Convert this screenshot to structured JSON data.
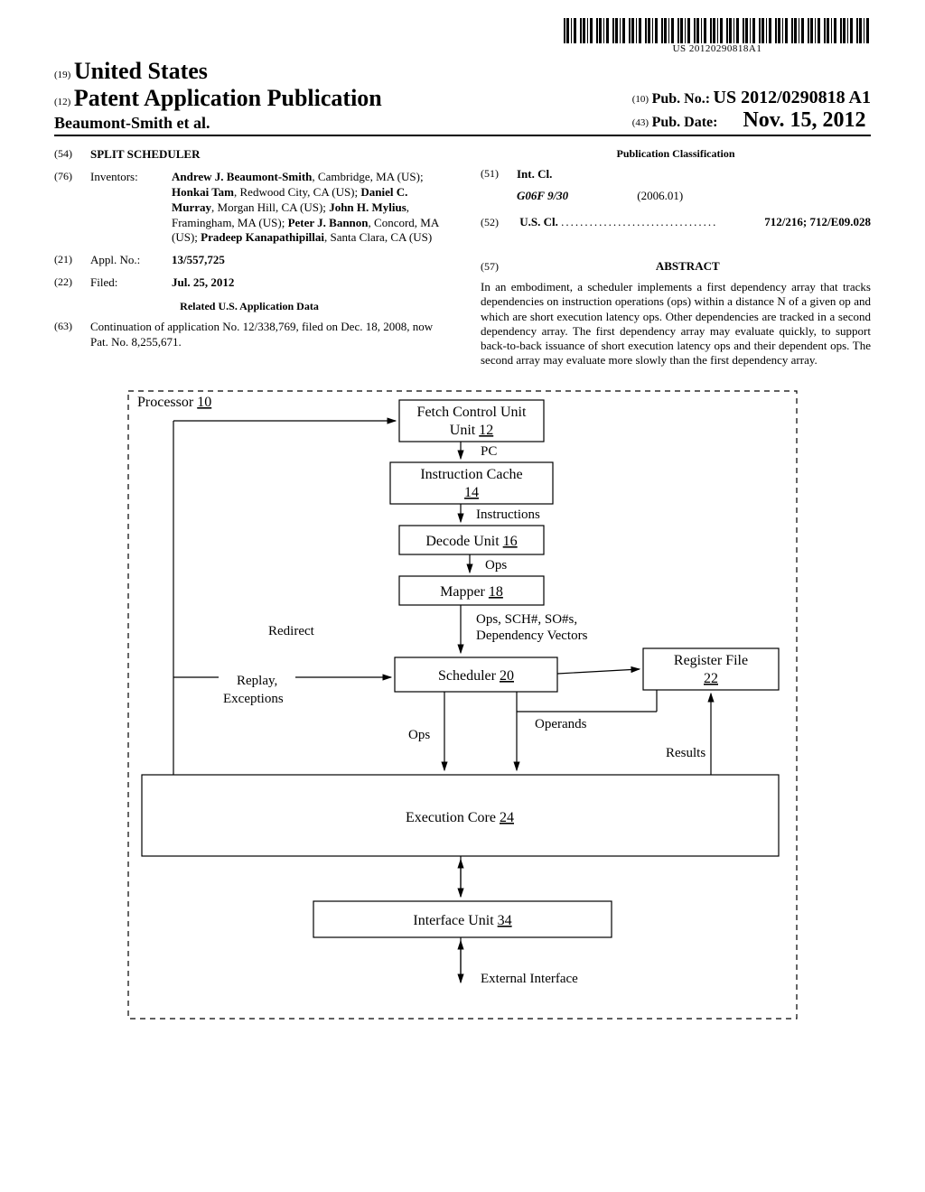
{
  "barcode_text": "US 20120290818A1",
  "country_prefix": "(19)",
  "country_name": "United States",
  "pub_prefix": "(12)",
  "pub_title": "Patent Application Publication",
  "authors_line": "Beaumont-Smith et al.",
  "pubno_prefix": "(10)",
  "pubno_label": "Pub. No.:",
  "pubno_value": "US 2012/0290818 A1",
  "pubdate_prefix": "(43)",
  "pubdate_label": "Pub. Date:",
  "pubdate_value": "Nov. 15, 2012",
  "bib": {
    "title_code": "(54)",
    "title_value": "SPLIT SCHEDULER",
    "inventors_code": "(76)",
    "inventors_label": "Inventors:",
    "inventors_html": "<b>Andrew J. Beaumont-Smith</b>, Cambridge, MA (US); <b>Honkai Tam</b>, Redwood City, CA (US); <b>Daniel C. Murray</b>, Morgan Hill, CA (US); <b>John H. Mylius</b>, Framingham, MA (US); <b>Peter J. Bannon</b>, Concord, MA (US); <b>Pradeep Kanapathipillai</b>, Santa Clara, CA (US)",
    "applno_code": "(21)",
    "applno_label": "Appl. No.:",
    "applno_value": "13/557,725",
    "filed_code": "(22)",
    "filed_label": "Filed:",
    "filed_value": "Jul. 25, 2012",
    "related_heading": "Related U.S. Application Data",
    "continuation_code": "(63)",
    "continuation_text": "Continuation of application No. 12/338,769, filed on Dec. 18, 2008, now Pat. No. 8,255,671."
  },
  "classification": {
    "heading": "Publication Classification",
    "intcl_code": "(51)",
    "intcl_label": "Int. Cl.",
    "intcl_class": "G06F 9/30",
    "intcl_date": "(2006.01)",
    "uscl_code": "(52)",
    "uscl_label": "U.S. Cl.",
    "uscl_value": "712/216; 712/E09.028",
    "abstract_code": "(57)",
    "abstract_heading": "ABSTRACT",
    "abstract_text": "In an embodiment, a scheduler implements a first dependency array that tracks dependencies on instruction operations (ops) within a distance N of a given op and which are short execution latency ops. Other dependencies are tracked in a second dependency array. The first dependency array may evaluate quickly, to support back-to-back issuance of short execution latency ops and their dependent ops. The second array may evaluate more slowly than the first dependency array."
  },
  "figure": {
    "processor_label": "Processor",
    "processor_num": "10",
    "fetch_label": "Fetch Control Unit",
    "fetch_num": "12",
    "pc_label": "PC",
    "icache_label": "Instruction Cache",
    "icache_num": "14",
    "instructions_label": "Instructions",
    "decode_label": "Decode Unit",
    "decode_num": "16",
    "ops_label": "Ops",
    "mapper_label": "Mapper",
    "mapper_num": "18",
    "mapper_out": "Ops, SCH#, SO#s, Dependency Vectors",
    "redirect_label": "Redirect",
    "scheduler_label": "Scheduler",
    "scheduler_num": "20",
    "regfile_label": "Register File",
    "regfile_num": "22",
    "replay_label": "Replay, Exceptions",
    "operands_label": "Operands",
    "results_label": "Results",
    "exec_label": "Execution Core",
    "exec_num": "24",
    "iface_label": "Interface Unit",
    "iface_num": "34",
    "extiface_label": "External Interface"
  },
  "colors": {
    "text": "#000000",
    "background": "#ffffff",
    "rule": "#000000"
  }
}
